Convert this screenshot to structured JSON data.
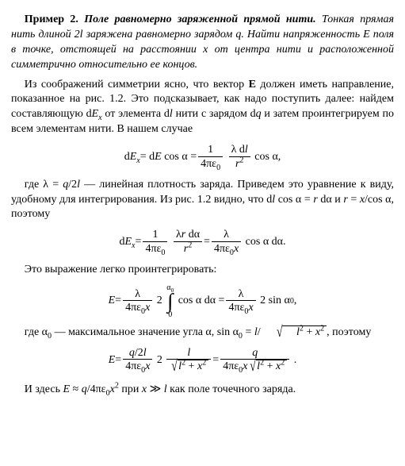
{
  "example_lead": "Пример 2.",
  "title_span": " Поле равномерно заряженной прямой нити. ",
  "prompt_html": "Тонкая прямая нить длиной 2<span class='italic'>l</span> заряжена равномерно зарядом <span class='italic'>q</span>. Найти напряженность <span class='italic'>E</span> поля в точке, отстоящей на расстоянии <span class='italic'>x</span> от центра нити и расположенной симметрично относительно ее концов.",
  "p1_html": "Из соображений симметрии ясно, что вектор <span class='bold'>E</span> должен иметь направление, показанное на рис. 1.2. Это подсказывает, как надо поступить далее: найдем составляющую d<span class='italic'>E<sub>x</sub></span> от элемента d<span class='italic'>l</span> нити с зарядом d<span class='italic'>q</span> и затем проинтегрируем по всем элементам нити. В нашем случае",
  "eq1_html": "d<span class='italic'>E<sub>x</sub></span> = d<span class='italic'>E</span>&nbsp;cos&nbsp;&alpha; = <span class='frac'><span class='num'>1</span><span class='den'>4&pi;&epsilon;<sub>0</sub></span></span>&nbsp;<span class='frac'><span class='num'>&lambda;&nbsp;d<span class='italic'>l</span></span><span class='den'><span class='italic'>r</span><sup>2</sup></span></span>&nbsp;cos&nbsp;&alpha;,",
  "p2_html": "где &lambda; = <span class='italic'>q</span>/2<span class='italic'>l</span> — линейная плотность заряда. Приведем это уравнение к виду, удобному для интегрирования. Из рис. 1.2 видно, что d<span class='italic'>l</span>&nbsp;cos&nbsp;&alpha; = <span class='italic'>r</span>&nbsp;d&alpha; и <span class='italic'>r</span> = <span class='italic'>x</span>/cos&nbsp;&alpha;, поэтому",
  "eq2_html": "d<span class='italic'>E<sub>x</sub></span> = <span class='frac'><span class='num'>1</span><span class='den'>4&pi;&epsilon;<sub>0</sub></span></span>&nbsp;<span class='frac'><span class='num'>&lambda;<span class='italic'>r</span>&nbsp;d&alpha;</span><span class='den'><span class='italic'>r</span><sup>2</sup></span></span> = <span class='frac'><span class='num'>&lambda;</span><span class='den'>4&pi;&epsilon;<sub>0</sub><span class='italic'>x</span></span></span>&nbsp;cos&nbsp;&alpha;&nbsp;d&alpha;.",
  "p3_text": "Это выражение легко проинтегрировать:",
  "eq3_html": "<span class='italic'>E</span> = <span class='frac'><span class='num'>&lambda;</span><span class='den'>4&pi;&epsilon;<sub>0</sub><span class='italic'>x</span></span></span>&nbsp;2&nbsp;<span class='intblock'><span class='lim'>&alpha;<sub>0</sub></span><span class='intsign'>&#8747;</span><span class='lim'>0</span></span>&nbsp;cos&nbsp;&alpha;&nbsp;d&alpha; = <span class='frac'><span class='num'>&lambda;</span><span class='den'>4&pi;&epsilon;<sub>0</sub><span class='italic'>x</span></span></span>&nbsp;2&nbsp;sin&nbsp;&alpha;<sub>0</sub>,",
  "p4_pre": "где &alpha;<sub>0</sub> — максимальное значение угла &alpha;, sin&nbsp;&alpha;<sub>0</sub> = <span class='italic'>l</span>/",
  "p4_sqrt_html": "<span class='italic'>l</span><sup>2</sup> + <span class='italic'>x</span><sup>2</sup>",
  "p4_post": ", поэтому",
  "eq4_html": "<span class='italic'>E</span> = <span class='frac'><span class='num'><span class='italic'>q</span>/2<span class='italic'>l</span></span><span class='den'>4&pi;&epsilon;<sub>0</sub><span class='italic'>x</span></span></span>&nbsp;2&nbsp;<span class='frac'><span class='num'><span class='italic'>l</span></span><span class='den'><span class='sqrt'><span class='radical'>&#8730;</span><span class='radicand'><span class='italic'>l</span><sup>2</sup> + <span class='italic'>x</span><sup>2</sup></span></span></span></span> = <span class='frac'><span class='num'><span class='italic'>q</span></span><span class='den'>4&pi;&epsilon;<sub>0</sub><span class='italic'>x</span><span class='sqrt'><span class='radical'>&#8730;</span><span class='radicand'><span class='italic'>l</span><sup>2</sup> + <span class='italic'>x</span><sup>2</sup></span></span></span></span>&nbsp;.",
  "p5_html": "И здесь <span class='italic'>E</span> &asymp; <span class='italic'>q</span>/4&pi;&epsilon;<sub>0</sub><span class='italic'>x</span><sup>2</sup> при <span class='italic'>x</span> &#8811; <span class='italic'>l</span> как поле точечного заряда."
}
